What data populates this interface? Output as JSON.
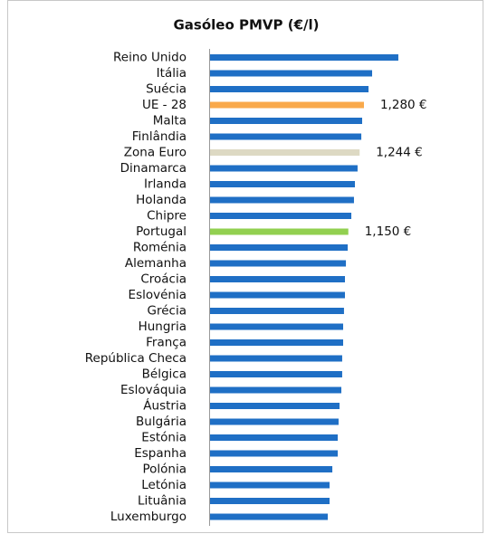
{
  "chart_data": {
    "type": "barh",
    "title": "Gasóleo PMVP (€/l)",
    "categories": [
      "Reino Unido",
      "Itália",
      "Suécia",
      "UE - 28",
      "Malta",
      "Finlândia",
      "Zona Euro",
      "Dinamarca",
      "Irlanda",
      "Holanda",
      "Chipre",
      "Portugal",
      "Roménia",
      "Alemanha",
      "Croácia",
      "Eslovénia",
      "Grécia",
      "Hungria",
      "França",
      "República Checa",
      "Bélgica",
      "Eslováquia",
      "Áustria",
      "Bulgária",
      "Estónia",
      "Espanha",
      "Polónia",
      "Letónia",
      "Lituânia",
      "Luxemburgo"
    ],
    "values": [
      1.566,
      1.348,
      1.318,
      1.28,
      1.265,
      1.258,
      1.244,
      1.227,
      1.205,
      1.197,
      1.175,
      1.15,
      1.145,
      1.13,
      1.122,
      1.122,
      1.114,
      1.107,
      1.107,
      1.099,
      1.099,
      1.092,
      1.077,
      1.069,
      1.062,
      1.062,
      1.017,
      0.994,
      0.994,
      0.979
    ],
    "value_labels": [
      null,
      null,
      null,
      "1,280 €",
      null,
      null,
      "1,244 €",
      null,
      null,
      null,
      null,
      "1,150 €",
      null,
      null,
      null,
      null,
      null,
      null,
      null,
      null,
      null,
      null,
      null,
      null,
      null,
      null,
      null,
      null,
      null,
      null
    ],
    "colors": [
      "#1f6fc5",
      "#1f6fc5",
      "#1f6fc5",
      "#f9a94b",
      "#1f6fc5",
      "#1f6fc5",
      "#ddd9c3",
      "#1f6fc5",
      "#1f6fc5",
      "#1f6fc5",
      "#1f6fc5",
      "#92d050",
      "#1f6fc5",
      "#1f6fc5",
      "#1f6fc5",
      "#1f6fc5",
      "#1f6fc5",
      "#1f6fc5",
      "#1f6fc5",
      "#1f6fc5",
      "#1f6fc5",
      "#1f6fc5",
      "#1f6fc5",
      "#1f6fc5",
      "#1f6fc5",
      "#1f6fc5",
      "#1f6fc5",
      "#1f6fc5",
      "#1f6fc5",
      "#1f6fc5"
    ]
  }
}
